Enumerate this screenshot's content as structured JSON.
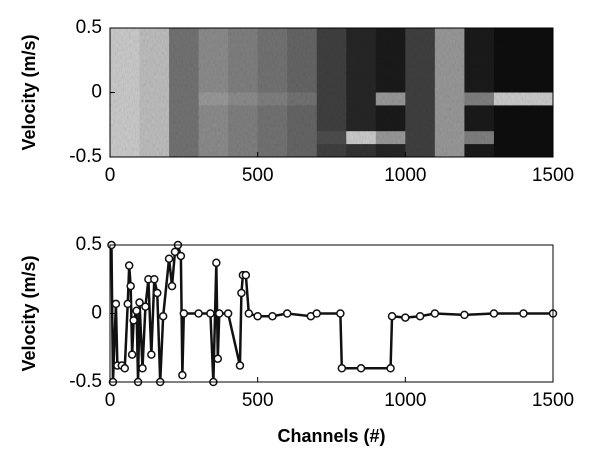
{
  "chart_data": [
    {
      "type": "heatmap",
      "ylabel": "Velocity (m/s)",
      "xlim": [
        0,
        1500
      ],
      "ylim": [
        -0.5,
        0.5
      ],
      "xticks": [
        0,
        500,
        1000,
        1500
      ],
      "yticks": [
        0.5,
        0,
        -0.5
      ],
      "z": [
        [
          0.8,
          0.75,
          0.45,
          0.55,
          0.5,
          0.45,
          0.4,
          0.25,
          0.15,
          0.1,
          0.25,
          0.6,
          0.1,
          0.05,
          0.05
        ],
        [
          0.8,
          0.75,
          0.45,
          0.55,
          0.5,
          0.45,
          0.4,
          0.25,
          0.15,
          0.1,
          0.25,
          0.6,
          0.1,
          0.05,
          0.05
        ],
        [
          0.8,
          0.75,
          0.45,
          0.55,
          0.5,
          0.45,
          0.4,
          0.25,
          0.15,
          0.1,
          0.25,
          0.6,
          0.1,
          0.05,
          0.05
        ],
        [
          0.8,
          0.75,
          0.45,
          0.55,
          0.5,
          0.45,
          0.4,
          0.25,
          0.15,
          0.1,
          0.25,
          0.6,
          0.1,
          0.05,
          0.05
        ],
        [
          0.8,
          0.75,
          0.45,
          0.55,
          0.5,
          0.45,
          0.4,
          0.25,
          0.15,
          0.1,
          0.25,
          0.6,
          0.1,
          0.05,
          0.05
        ],
        [
          0.8,
          0.75,
          0.45,
          0.6,
          0.55,
          0.5,
          0.45,
          0.25,
          0.15,
          0.6,
          0.25,
          0.6,
          0.5,
          0.8,
          0.8
        ],
        [
          0.8,
          0.75,
          0.45,
          0.55,
          0.5,
          0.45,
          0.4,
          0.25,
          0.15,
          0.1,
          0.25,
          0.6,
          0.1,
          0.05,
          0.05
        ],
        [
          0.8,
          0.75,
          0.45,
          0.55,
          0.5,
          0.45,
          0.4,
          0.25,
          0.15,
          0.1,
          0.25,
          0.6,
          0.1,
          0.05,
          0.05
        ],
        [
          0.8,
          0.75,
          0.45,
          0.55,
          0.5,
          0.45,
          0.4,
          0.3,
          0.8,
          0.6,
          0.25,
          0.6,
          0.5,
          0.05,
          0.05
        ],
        [
          0.8,
          0.75,
          0.45,
          0.55,
          0.5,
          0.45,
          0.4,
          0.25,
          0.2,
          0.15,
          0.25,
          0.6,
          0.1,
          0.05,
          0.05
        ]
      ]
    },
    {
      "type": "line",
      "xlabel": "Channels (#)",
      "ylabel": "Velocity (m/s)",
      "color": "#111111",
      "xlim": [
        0,
        1500
      ],
      "ylim": [
        -0.5,
        0.5
      ],
      "xticks": [
        0,
        500,
        1000,
        1500
      ],
      "yticks": [
        0.5,
        0,
        -0.5
      ],
      "x": [
        5,
        10,
        20,
        25,
        40,
        50,
        60,
        65,
        70,
        75,
        80,
        90,
        95,
        100,
        110,
        120,
        130,
        140,
        150,
        160,
        170,
        180,
        200,
        210,
        220,
        230,
        240,
        245,
        250,
        300,
        340,
        350,
        360,
        365,
        370,
        400,
        440,
        445,
        450,
        460,
        470,
        500,
        550,
        600,
        680,
        700,
        780,
        785,
        850,
        950,
        955,
        1000,
        1050,
        1100,
        1200,
        1300,
        1400,
        1500
      ],
      "values": [
        0.5,
        -0.5,
        0.07,
        -0.38,
        -0.38,
        -0.4,
        0.07,
        0.35,
        0.2,
        -0.3,
        -0.05,
        0.02,
        -0.5,
        0.08,
        -0.4,
        0.05,
        0.25,
        -0.3,
        0.25,
        0.15,
        -0.5,
        -0.02,
        0.4,
        0.2,
        0.45,
        0.5,
        0.42,
        -0.45,
        0,
        0,
        0,
        -0.5,
        0.37,
        -0.33,
        0,
        0,
        -0.38,
        0.15,
        0.28,
        0.28,
        0,
        -0.02,
        -0.02,
        0,
        -0.02,
        0,
        0,
        -0.4,
        -0.4,
        -0.4,
        -0.02,
        -0.03,
        -0.02,
        0,
        -0.01,
        0,
        0,
        0
      ]
    }
  ]
}
